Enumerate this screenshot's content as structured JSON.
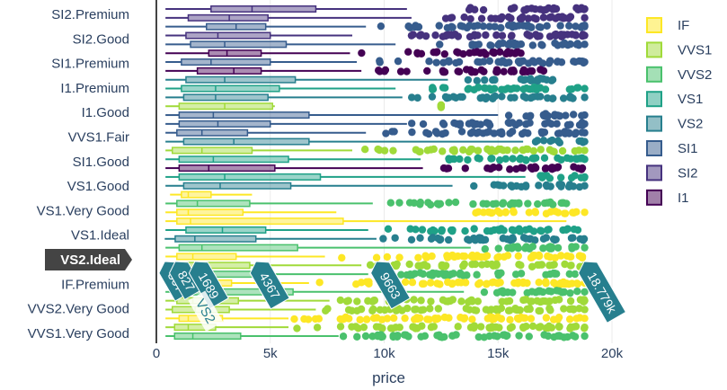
{
  "chart_data": {
    "type": "box",
    "orientation": "horizontal",
    "title": "",
    "xlabel": "price",
    "xlim": [
      0,
      20000
    ],
    "xticks": [
      0,
      5000,
      10000,
      15000,
      20000
    ],
    "xtick_labels": [
      "0",
      "5k",
      "10k",
      "15k",
      "20k"
    ],
    "grid": true,
    "legend_position": "top-right",
    "y_tick_labels": [
      "SI2.Premium",
      "SI2.Good",
      "SI1.Premium",
      "I1.Premium",
      "I1.Good",
      "VVS1.Fair",
      "SI1.Good",
      "VS1.Good",
      "VS1.Very Good",
      "VS1.Ideal",
      "VS2.Ideal",
      "IF.Premium",
      "VVS2.Very Good",
      "VVS1.Very Good"
    ],
    "series": [
      {
        "name": "IF",
        "color": "#fde725"
      },
      {
        "name": "VVS1",
        "color": "#a0da39"
      },
      {
        "name": "VVS2",
        "color": "#4ac16d"
      },
      {
        "name": "VS1",
        "color": "#1fa187"
      },
      {
        "name": "VS2",
        "color": "#277f8e"
      },
      {
        "name": "SI1",
        "color": "#365c8d"
      },
      {
        "name": "SI2",
        "color": "#46327e"
      },
      {
        "name": "I1",
        "color": "#440154"
      }
    ],
    "hover": {
      "category": "VS2.Ideal",
      "series": "VS2",
      "min": "367",
      "q1": "827",
      "median": "1689",
      "q3": "4367",
      "upper_fence": "9663",
      "max": "18.779k"
    }
  }
}
